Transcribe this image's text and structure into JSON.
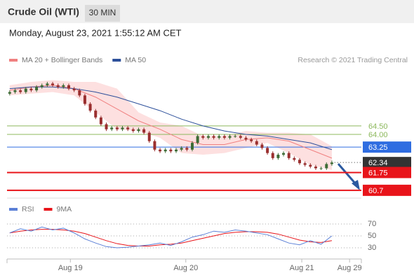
{
  "header": {
    "title": "Crude Oil (WTI)",
    "badge": "30 MIN",
    "date": "Monday, August 23, 2021 1:55:12 AM CET"
  },
  "chart_data": {
    "type": "candlestick",
    "legend": [
      {
        "name": "MA 20 + Bollinger Bands",
        "color": "#f08080"
      },
      {
        "name": "MA 50",
        "color": "#2c4f9a"
      }
    ],
    "credit": "Research © 2021 Trading Central",
    "xlim": [
      0,
      66
    ],
    "xticks": [
      {
        "value": 11.8,
        "label": "Aug 19"
      },
      {
        "value": 33.3,
        "label": "Aug 20"
      },
      {
        "value": 54.9,
        "label": "Aug 21"
      },
      {
        "value": 63.8,
        "label": "Aug 29"
      }
    ],
    "ylim": [
      60.24,
      67.8
    ],
    "up_color": "#3d6b35",
    "down_color": "#9a2f2f",
    "open": [
      66.4,
      66.5,
      66.6,
      66.5,
      66.7,
      66.6,
      66.8,
      66.9,
      67.0,
      66.9,
      66.8,
      66.9,
      66.7,
      66.6,
      66.3,
      65.8,
      65.4,
      65.0,
      64.6,
      64.3,
      64.4,
      64.3,
      64.4,
      64.3,
      64.2,
      64.3,
      64.1,
      63.6,
      63.1,
      63.0,
      63.1,
      63.0,
      63.1,
      63.2,
      63.1,
      63.5,
      63.9,
      63.8,
      63.9,
      63.8,
      63.9,
      63.8,
      63.9,
      63.9,
      63.8,
      63.7,
      63.6,
      63.4,
      63.2,
      62.9,
      62.6,
      62.8,
      62.9,
      62.6,
      62.5,
      62.3,
      62.2,
      62.1,
      62.0,
      62.0,
      62.25
    ],
    "high": [
      66.6,
      66.7,
      66.7,
      66.8,
      66.8,
      66.9,
      67.0,
      67.1,
      67.1,
      67.0,
      67.0,
      67.0,
      66.8,
      66.7,
      66.4,
      65.9,
      65.5,
      65.1,
      64.7,
      64.5,
      64.5,
      64.5,
      64.5,
      64.4,
      64.4,
      64.4,
      64.2,
      63.7,
      63.2,
      63.2,
      63.2,
      63.2,
      63.3,
      63.3,
      63.6,
      64.0,
      64.0,
      64.0,
      64.0,
      64.0,
      64.0,
      64.0,
      64.0,
      64.0,
      63.9,
      63.8,
      63.7,
      63.5,
      63.3,
      63.0,
      62.9,
      63.0,
      63.0,
      62.7,
      62.6,
      62.4,
      62.3,
      62.2,
      62.1,
      62.35,
      62.45
    ],
    "low": [
      66.3,
      66.4,
      66.4,
      66.4,
      66.5,
      66.5,
      66.7,
      66.8,
      66.8,
      66.7,
      66.7,
      66.6,
      66.5,
      66.2,
      65.7,
      65.3,
      64.9,
      64.5,
      64.2,
      64.2,
      64.2,
      64.2,
      64.2,
      64.1,
      64.1,
      64.0,
      63.5,
      63.0,
      62.9,
      62.9,
      62.9,
      62.9,
      63.0,
      63.0,
      63.0,
      63.4,
      63.7,
      63.7,
      63.7,
      63.7,
      63.7,
      63.7,
      63.8,
      63.7,
      63.6,
      63.5,
      63.3,
      63.1,
      62.8,
      62.5,
      62.5,
      62.7,
      62.5,
      62.4,
      62.2,
      62.1,
      62.0,
      61.9,
      61.9,
      61.9,
      62.15
    ],
    "close": [
      66.5,
      66.6,
      66.5,
      66.7,
      66.6,
      66.8,
      66.9,
      67.0,
      66.9,
      66.8,
      66.9,
      66.7,
      66.6,
      66.3,
      65.8,
      65.4,
      65.0,
      64.6,
      64.3,
      64.4,
      64.3,
      64.4,
      64.3,
      64.2,
      64.3,
      64.1,
      63.6,
      63.1,
      63.0,
      63.1,
      63.0,
      63.1,
      63.2,
      63.1,
      63.5,
      63.9,
      63.8,
      63.9,
      63.8,
      63.9,
      63.8,
      63.9,
      63.9,
      63.8,
      63.7,
      63.6,
      63.4,
      63.2,
      62.9,
      62.6,
      62.8,
      62.9,
      62.6,
      62.5,
      62.3,
      62.2,
      62.1,
      62.0,
      62.0,
      62.25,
      62.34
    ],
    "line_x": [
      0.5,
      4.5,
      8.5,
      12.5,
      16.5,
      20.5,
      24.5,
      28.5,
      32.5,
      36.5,
      40.5,
      44.5,
      48.5,
      52.5,
      56.5,
      60.5
    ],
    "bb_upper": [
      66.9,
      67.1,
      67.2,
      67.1,
      67.1,
      66.7,
      65.3,
      64.7,
      64.5,
      63.9,
      63.9,
      64.2,
      64.1,
      64.1,
      64.0,
      63.3
    ],
    "bb_lower": [
      66.3,
      66.4,
      66.5,
      66.3,
      65.3,
      64.3,
      64.2,
      63.8,
      62.9,
      62.8,
      62.9,
      63.2,
      63.5,
      62.9,
      62.2,
      61.9
    ],
    "ma20": [
      66.6,
      66.8,
      66.9,
      66.7,
      66.2,
      65.5,
      64.8,
      64.3,
      63.7,
      63.4,
      63.4,
      63.7,
      63.8,
      63.6,
      63.1,
      62.6
    ],
    "ma50": [
      66.7,
      66.8,
      66.8,
      66.7,
      66.5,
      66.2,
      65.8,
      65.4,
      64.9,
      64.5,
      64.2,
      64.0,
      63.9,
      63.7,
      63.5,
      63.1
    ],
    "band_color": "#fde0e0",
    "levels": [
      {
        "value": 64.5,
        "label": "64.50",
        "color": "#8cb85c",
        "boxed": false,
        "style": "solid"
      },
      {
        "value": 64.0,
        "label": "64.00",
        "color": "#8cb85c",
        "boxed": false,
        "style": "solid"
      },
      {
        "value": 63.25,
        "color": "#2f6de1",
        "boxed": true,
        "style": "solid"
      },
      {
        "value": 62.34,
        "color": "#333333",
        "boxed": true,
        "style": "dotted"
      },
      {
        "value": 61.75,
        "color": "#e8141a",
        "boxed": true,
        "style": "solid"
      },
      {
        "value": 60.7,
        "color": "#e8141a",
        "boxed": true,
        "style": "solid"
      }
    ],
    "rsi": {
      "legend": [
        {
          "name": "RSI",
          "color": "#5b7fd6"
        },
        {
          "name": "9MA",
          "color": "#e8141a"
        }
      ],
      "ylim": [
        10,
        100
      ],
      "yticks": [
        70,
        50,
        30
      ],
      "x": [
        0.5,
        2.5,
        4.5,
        6.5,
        8.5,
        10.5,
        12.5,
        14.5,
        16.5,
        18.5,
        20.5,
        22.5,
        24.5,
        26.5,
        28.5,
        30.5,
        32.5,
        34.5,
        36.5,
        38.5,
        40.5,
        42.5,
        44.5,
        46.5,
        48.5,
        50.5,
        52.5,
        54.5,
        56.5,
        58.5,
        60.5
      ],
      "rsi": [
        55,
        62,
        58,
        65,
        60,
        63,
        55,
        45,
        38,
        32,
        30,
        31,
        33,
        35,
        38,
        34,
        40,
        48,
        52,
        58,
        56,
        60,
        58,
        55,
        52,
        45,
        38,
        35,
        42,
        36,
        50
      ],
      "ma9": [
        55,
        58,
        60,
        61,
        61,
        60,
        58,
        54,
        48,
        42,
        37,
        34,
        33,
        33,
        35,
        36,
        38,
        42,
        46,
        50,
        54,
        56,
        57,
        57,
        56,
        53,
        48,
        43,
        40,
        39,
        42
      ]
    }
  }
}
